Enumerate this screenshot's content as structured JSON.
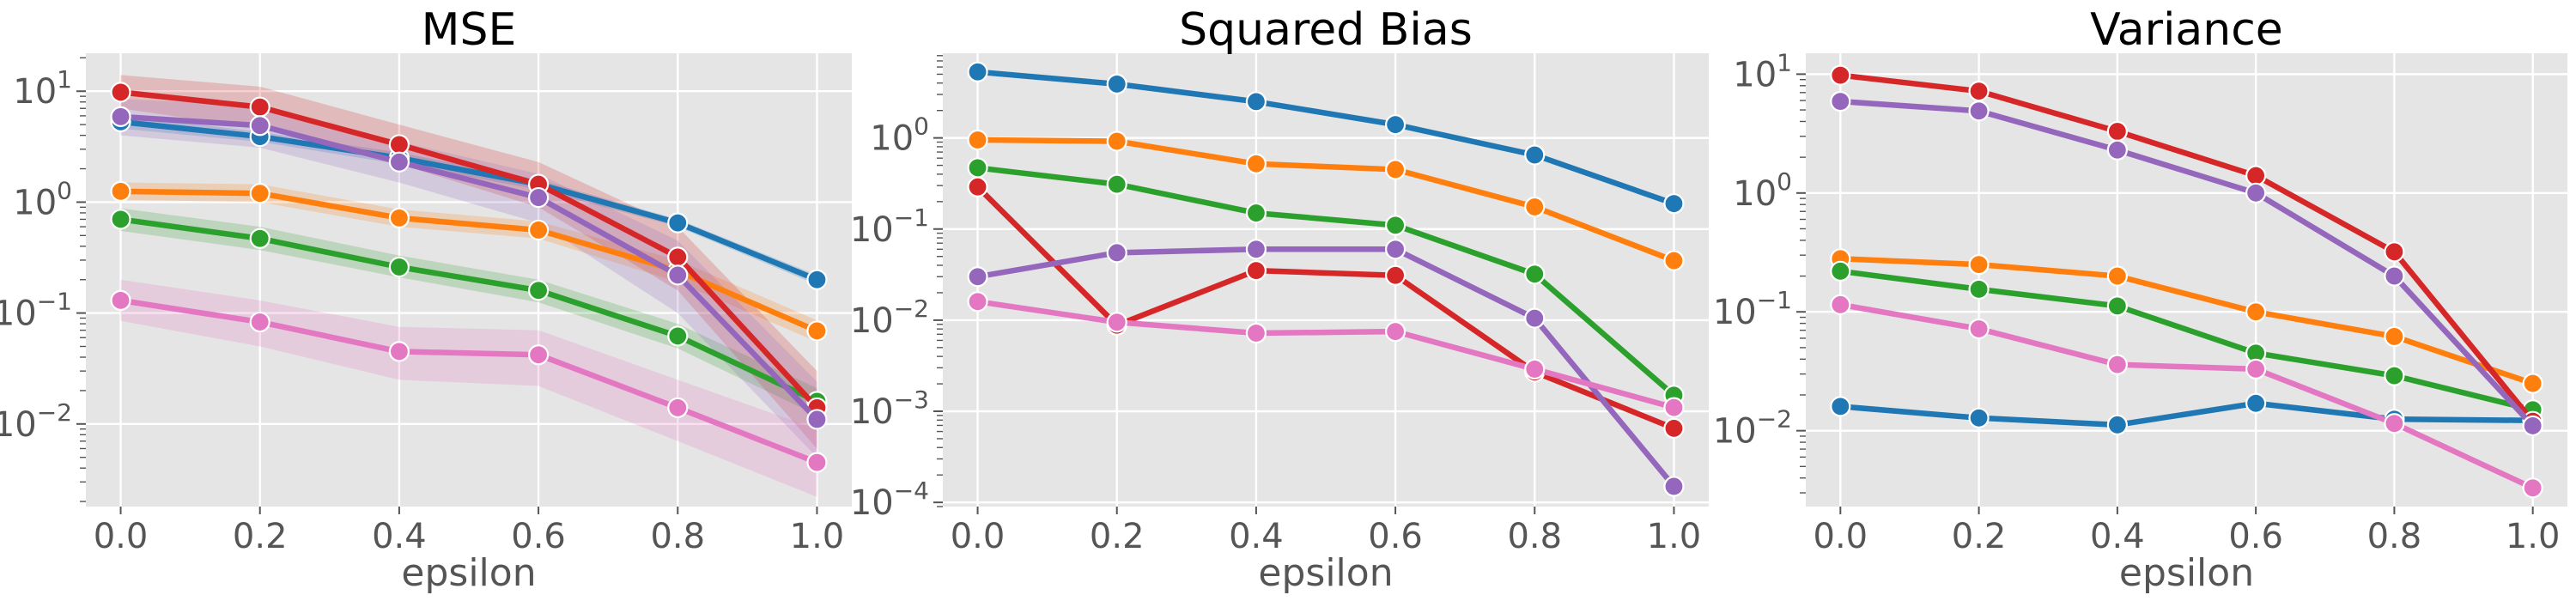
{
  "chart_data": [
    {
      "type": "line",
      "title": "MSE",
      "xlabel": "epsilon",
      "ylabel": "",
      "yscale": "log",
      "x": [
        0.0,
        0.2,
        0.4,
        0.6,
        0.8,
        1.0
      ],
      "xticks": [
        "0.0",
        "0.2",
        "0.4",
        "0.6",
        "0.8",
        "1.0"
      ],
      "xlim": [
        -0.05,
        1.05
      ],
      "ylim": [
        0.0018,
        22
      ],
      "yticks": [
        {
          "base": "10",
          "exp": "1",
          "value": 10
        },
        {
          "base": "10",
          "exp": "0",
          "value": 1
        },
        {
          "base": "10",
          "exp": "−1",
          "value": 0.1
        },
        {
          "base": "10",
          "exp": "−2",
          "value": 0.01
        }
      ],
      "grid": true,
      "confidence_bands": true,
      "series": [
        {
          "color": "#1f77b4",
          "values": [
            5.3,
            3.9,
            2.5,
            1.45,
            0.65,
            0.2
          ],
          "band_lower": [
            4.6,
            3.5,
            2.2,
            1.3,
            0.6,
            0.18
          ],
          "band_upper": [
            6.1,
            4.3,
            2.8,
            1.6,
            0.7,
            0.22
          ]
        },
        {
          "color": "#ff7f0e",
          "values": [
            1.25,
            1.2,
            0.72,
            0.56,
            0.24,
            0.069
          ],
          "band_lower": [
            1.05,
            1.0,
            0.6,
            0.47,
            0.19,
            0.055
          ],
          "band_upper": [
            1.5,
            1.45,
            0.86,
            0.67,
            0.3,
            0.086
          ]
        },
        {
          "color": "#2ca02c",
          "values": [
            0.7,
            0.47,
            0.26,
            0.16,
            0.062,
            0.016
          ],
          "band_lower": [
            0.55,
            0.37,
            0.21,
            0.125,
            0.048,
            0.012
          ],
          "band_upper": [
            0.88,
            0.6,
            0.33,
            0.2,
            0.08,
            0.021
          ]
        },
        {
          "color": "#d62728",
          "values": [
            9.8,
            7.2,
            3.3,
            1.45,
            0.32,
            0.014
          ],
          "band_lower": [
            7.0,
            4.6,
            2.2,
            0.9,
            0.16,
            0.006
          ],
          "band_upper": [
            14.0,
            11.0,
            5.0,
            2.3,
            0.6,
            0.03
          ]
        },
        {
          "color": "#9467bd",
          "values": [
            5.9,
            4.9,
            2.3,
            1.1,
            0.22,
            0.011
          ],
          "band_lower": [
            4.0,
            3.1,
            1.5,
            0.65,
            0.1,
            0.005
          ],
          "band_upper": [
            8.5,
            7.5,
            3.5,
            1.8,
            0.45,
            0.024
          ]
        },
        {
          "color": "#e377c2",
          "values": [
            0.13,
            0.083,
            0.045,
            0.042,
            0.014,
            0.0045
          ],
          "band_lower": [
            0.085,
            0.05,
            0.025,
            0.022,
            0.007,
            0.0022
          ],
          "band_upper": [
            0.2,
            0.13,
            0.075,
            0.07,
            0.025,
            0.009
          ]
        }
      ]
    },
    {
      "type": "line",
      "title": "Squared Bias",
      "xlabel": "epsilon",
      "ylabel": "",
      "yscale": "log",
      "x": [
        0.0,
        0.2,
        0.4,
        0.6,
        0.8,
        1.0
      ],
      "xticks": [
        "0.0",
        "0.2",
        "0.4",
        "0.6",
        "0.8",
        "1.0"
      ],
      "xlim": [
        -0.05,
        1.05
      ],
      "ylim": [
        9e-05,
        8.5
      ],
      "yticks": [
        {
          "base": "10",
          "exp": "0",
          "value": 1
        },
        {
          "base": "10",
          "exp": "−1",
          "value": 0.1
        },
        {
          "base": "10",
          "exp": "−2",
          "value": 0.01
        },
        {
          "base": "10",
          "exp": "−3",
          "value": 0.001
        },
        {
          "base": "10",
          "exp": "−4",
          "value": 0.0001
        }
      ],
      "grid": true,
      "confidence_bands": false,
      "series": [
        {
          "color": "#1f77b4",
          "values": [
            5.3,
            3.9,
            2.5,
            1.4,
            0.65,
            0.19
          ]
        },
        {
          "color": "#ff7f0e",
          "values": [
            0.95,
            0.92,
            0.52,
            0.45,
            0.175,
            0.045
          ]
        },
        {
          "color": "#2ca02c",
          "values": [
            0.47,
            0.31,
            0.15,
            0.11,
            0.032,
            0.0015
          ]
        },
        {
          "color": "#d62728",
          "values": [
            0.29,
            0.0088,
            0.035,
            0.031,
            0.0027,
            0.00065
          ]
        },
        {
          "color": "#9467bd",
          "values": [
            0.03,
            0.055,
            0.06,
            0.06,
            0.0105,
            0.00015
          ]
        },
        {
          "color": "#e377c2",
          "values": [
            0.016,
            0.0095,
            0.0072,
            0.0075,
            0.0029,
            0.0011
          ]
        }
      ]
    },
    {
      "type": "line",
      "title": "Variance",
      "xlabel": "epsilon",
      "ylabel": "",
      "yscale": "log",
      "x": [
        0.0,
        0.2,
        0.4,
        0.6,
        0.8,
        1.0
      ],
      "xticks": [
        "0.0",
        "0.2",
        "0.4",
        "0.6",
        "0.8",
        "1.0"
      ],
      "xlim": [
        -0.05,
        1.05
      ],
      "ylim": [
        0.0023,
        15
      ],
      "yticks": [
        {
          "base": "10",
          "exp": "1",
          "value": 10
        },
        {
          "base": "10",
          "exp": "0",
          "value": 1
        },
        {
          "base": "10",
          "exp": "−1",
          "value": 0.1
        },
        {
          "base": "10",
          "exp": "−2",
          "value": 0.01
        }
      ],
      "grid": true,
      "confidence_bands": false,
      "series": [
        {
          "color": "#1f77b4",
          "values": [
            0.016,
            0.0128,
            0.0112,
            0.017,
            0.0125,
            0.0122
          ]
        },
        {
          "color": "#ff7f0e",
          "values": [
            0.28,
            0.25,
            0.2,
            0.1,
            0.062,
            0.025
          ]
        },
        {
          "color": "#2ca02c",
          "values": [
            0.22,
            0.155,
            0.112,
            0.045,
            0.029,
            0.015
          ]
        },
        {
          "color": "#d62728",
          "values": [
            9.8,
            7.2,
            3.3,
            1.4,
            0.32,
            0.012
          ]
        },
        {
          "color": "#9467bd",
          "values": [
            5.9,
            4.9,
            2.3,
            1.0,
            0.2,
            0.011
          ]
        },
        {
          "color": "#e377c2",
          "values": [
            0.115,
            0.072,
            0.036,
            0.033,
            0.0115,
            0.0033
          ]
        }
      ]
    }
  ]
}
